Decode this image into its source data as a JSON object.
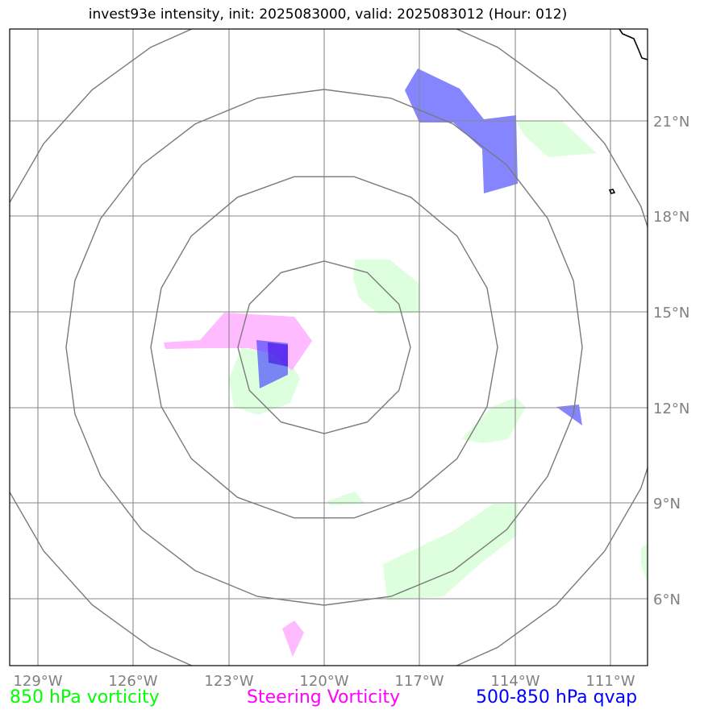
{
  "title": "invest93e intensity, init: 2025083000, valid: 2025083012 (Hour: 012)",
  "longitude_labels": [
    "129°W",
    "126°W",
    "123°W",
    "120°W",
    "117°W",
    "114°W",
    "111°W"
  ],
  "latitude_labels": [
    "21°N",
    "18°N",
    "15°N",
    "12°N",
    "9°N",
    "6°N"
  ],
  "legend": {
    "vorticity_850": "850 hPa vorticity",
    "steering_vorticity": "Steering Vorticity",
    "qvap_500_850": "500-850 hPa qvap"
  },
  "colors": {
    "vorticity_850": "#00ff00",
    "steering_vorticity": "#ff00ff",
    "qvap_500_850": "#0000ff",
    "gridline": "#8a8a8a",
    "range_ring": "#7a7a7a",
    "label_gray": "#808080"
  },
  "map": {
    "center": "120°W, 14°N",
    "extent_lon": [
      "130°W",
      "110°W"
    ],
    "extent_lat": [
      "4°N",
      "24°N"
    ],
    "range_rings": 4
  }
}
